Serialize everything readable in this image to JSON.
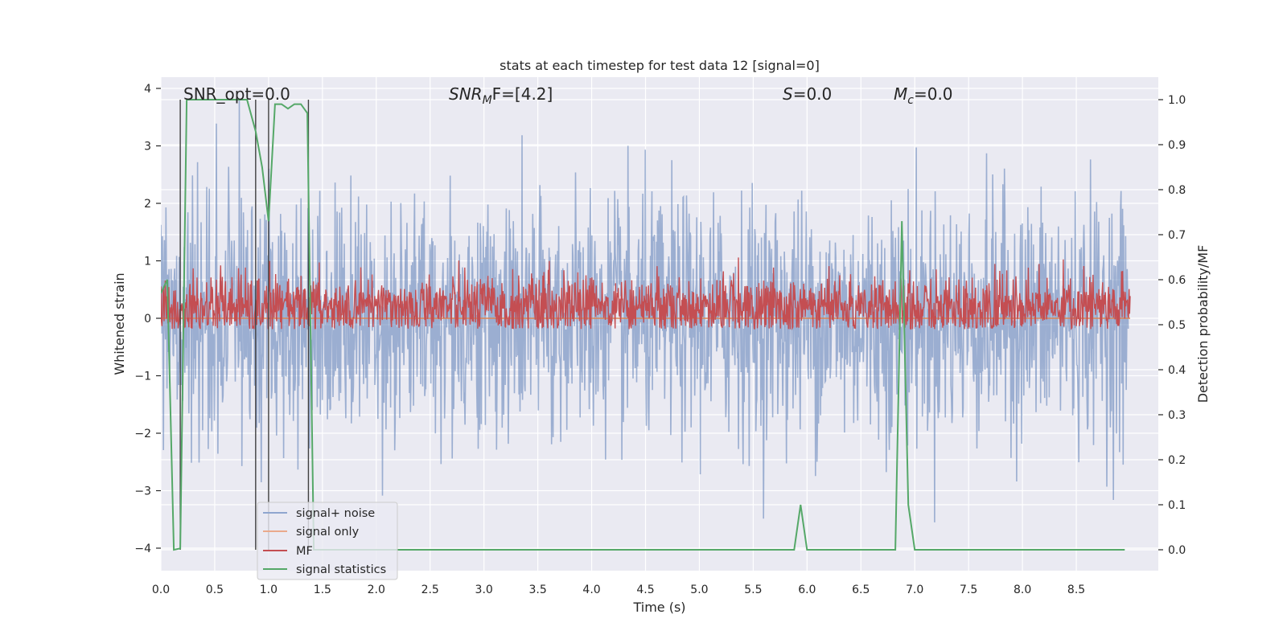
{
  "chart_data": {
    "type": "line",
    "title": "stats at each timestep for test data 12 [signal=0]",
    "xlabel": "Time (s)",
    "ylabel": "Whitened strain",
    "ylabel_right": "Detection probability/MF",
    "xlim": [
      0,
      9.0
    ],
    "ylim": [
      -4.3,
      4.2
    ],
    "ylim_right": [
      -0.045,
      1.045
    ],
    "xticks": [
      0.0,
      0.5,
      1.0,
      1.5,
      2.0,
      2.5,
      3.0,
      3.5,
      4.0,
      4.5,
      5.0,
      5.5,
      6.0,
      6.5,
      7.0,
      7.5,
      8.0,
      8.5
    ],
    "xtick_labels": [
      "0.0",
      "0.5",
      "1.0",
      "1.5",
      "2.0",
      "2.5",
      "3.0",
      "3.5",
      "4.0",
      "4.5",
      "5.0",
      "5.5",
      "6.0",
      "6.5",
      "7.0",
      "7.5",
      "8.0",
      "8.5"
    ],
    "yticks": [
      -4,
      -3,
      -2,
      -1,
      0,
      1,
      2,
      3,
      4
    ],
    "ytick_labels": [
      "−4",
      "−3",
      "−2",
      "−1",
      "0",
      "1",
      "2",
      "3",
      "4"
    ],
    "yticks_right": [
      0.0,
      0.1,
      0.2,
      0.3,
      0.4,
      0.5,
      0.6,
      0.7,
      0.8,
      0.9,
      1.0
    ],
    "ytick_labels_right": [
      "0.0",
      "0.1",
      "0.2",
      "0.3",
      "0.4",
      "0.5",
      "0.6",
      "0.7",
      "0.8",
      "0.9",
      "1.0"
    ],
    "grid": true,
    "legend_position": "lower-left",
    "annotations": [
      {
        "text": "SNR_opt=0.0",
        "x": 0.19,
        "y": 3.9
      },
      {
        "text": "SNR_MF=[4.2]",
        "x": 2.6,
        "y": 3.9
      },
      {
        "text": "S=0.0",
        "x": 5.6,
        "y": 3.9
      },
      {
        "text": "M_c=0.0",
        "x": 6.6,
        "y": 3.9
      }
    ],
    "series": [
      {
        "name": "signal+ noise",
        "color": "#4c72b0",
        "opacity": 0.5,
        "axis": "left",
        "kind": "noise_band",
        "amplitude_sigma": 1.0,
        "peak_high": 3.8,
        "peak_low": -4.0
      },
      {
        "name": "signal only",
        "color": "#dd8452",
        "axis": "left",
        "x": [
          0.0,
          9.0
        ],
        "y": [
          0.0,
          0.0
        ]
      },
      {
        "name": "MF",
        "color": "#c44e52",
        "axis": "right",
        "kind": "noise_band",
        "center": 0.54,
        "range": [
          0.49,
          0.65
        ]
      },
      {
        "name": "signal statistics",
        "color": "#55a868",
        "axis": "right",
        "x": [
          0.0,
          0.06,
          0.12,
          0.18,
          0.24,
          0.3,
          0.4,
          0.5,
          0.6,
          0.7,
          0.8,
          0.88,
          0.94,
          1.0,
          1.06,
          1.12,
          1.18,
          1.24,
          1.3,
          1.36,
          1.42,
          1.48,
          1.6,
          2.0,
          3.0,
          4.0,
          5.0,
          5.88,
          5.94,
          6.0,
          6.1,
          6.82,
          6.88,
          6.94,
          7.0,
          7.1,
          8.0,
          8.95
        ],
        "y": [
          0.57,
          0.6,
          0.0,
          0.003,
          1.0,
          1.0,
          1.0,
          1.0,
          1.0,
          1.0,
          1.0,
          0.93,
          0.85,
          0.73,
          0.99,
          0.99,
          0.98,
          0.99,
          0.99,
          0.97,
          0.0,
          0.0,
          0.0,
          0.0,
          0.0,
          0.0,
          0.0,
          0.0,
          0.1,
          0.0,
          0.0,
          0.0,
          0.73,
          0.1,
          0.0,
          0.0,
          0.0,
          0.0
        ]
      }
    ],
    "vertical_markers": {
      "color": "#404040",
      "x": [
        0.18,
        0.88,
        1.0,
        1.37
      ]
    }
  },
  "legend": {
    "items": [
      {
        "label": "signal+ noise",
        "color": "#8fa6cf"
      },
      {
        "label": "signal only",
        "color": "#eaa98c"
      },
      {
        "label": "MF",
        "color": "#c44e52"
      },
      {
        "label": "signal statistics",
        "color": "#55a868"
      }
    ]
  },
  "annotation_text": {
    "snr_opt": "SNR_opt=0.0",
    "snr_mf_main": "SNR",
    "snr_mf_sub": "M",
    "snr_mf_rest": "F=[4.2]",
    "s_main": "S",
    "s_rest": "=0.0",
    "mc_main": "M",
    "mc_sub": "c",
    "mc_rest": "=0.0"
  }
}
